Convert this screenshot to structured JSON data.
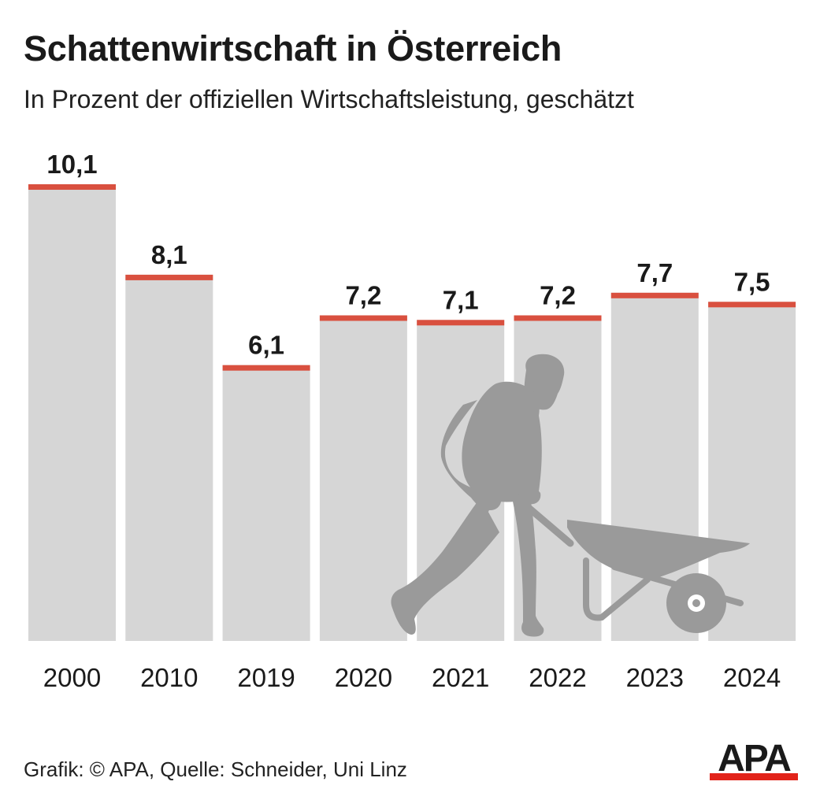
{
  "header": {
    "title": "Schattenwirtschaft in Österreich",
    "subtitle": "In Prozent der offiziellen Wirtschaftsleistung, geschätzt"
  },
  "footer": {
    "credit": "Grafik: © APA, Quelle: Schneider, Uni Linz",
    "logo_text": "APA"
  },
  "colors": {
    "bar": "#d6d6d6",
    "bar_top": "#d9503f",
    "silhouette": "#9a9a9a",
    "logo": "#1a1a1a",
    "logo_accent": "#e2231a"
  },
  "illustration": "person-pushing-wheelbarrow",
  "chart_data": {
    "type": "bar",
    "title": "Schattenwirtschaft in Österreich",
    "subtitle": "In Prozent der offiziellen Wirtschaftsleistung, geschätzt",
    "categories": [
      "2000",
      "2010",
      "2019",
      "2020",
      "2021",
      "2022",
      "2023",
      "2024"
    ],
    "values": [
      10.1,
      8.1,
      6.1,
      7.2,
      7.1,
      7.2,
      7.7,
      7.5
    ],
    "value_labels": [
      "10,1",
      "8,1",
      "6,1",
      "7,2",
      "7,1",
      "7,2",
      "7,7",
      "7,5"
    ],
    "xlabel": "",
    "ylabel": "",
    "ylim": [
      0,
      10.1
    ],
    "grid": false,
    "legend": "none"
  }
}
